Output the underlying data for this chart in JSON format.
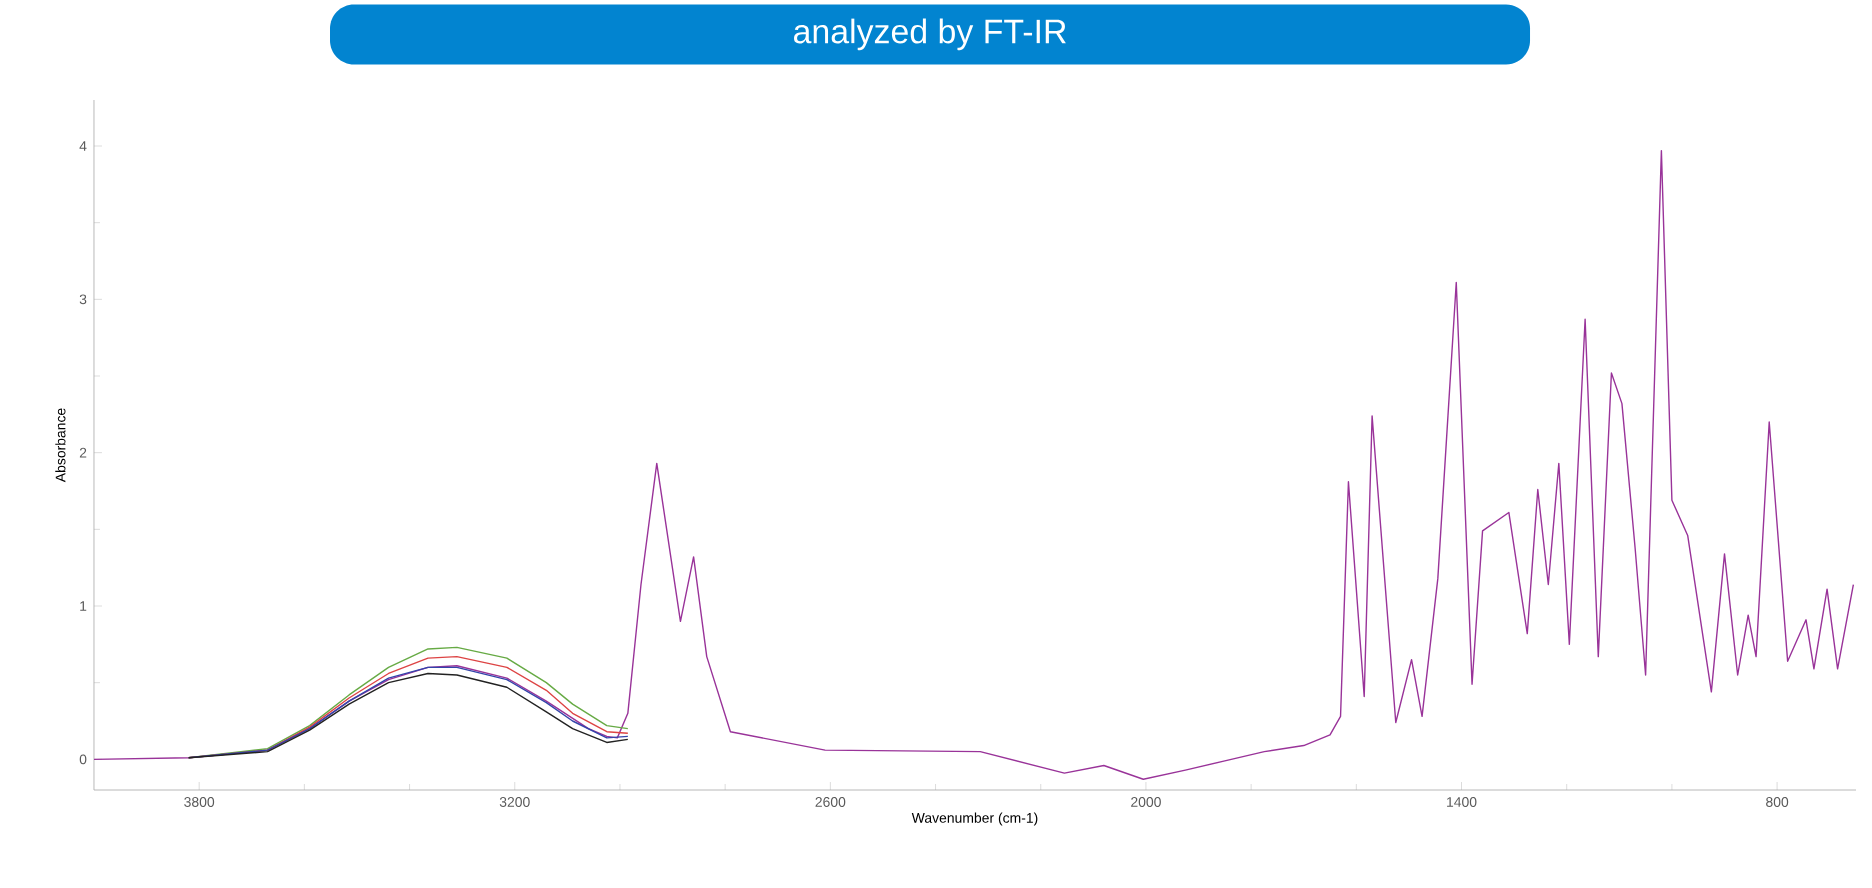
{
  "chart_data": {
    "type": "line",
    "title": "analyzed by FT-IR",
    "xlabel": "Wavenumber (cm-1)",
    "ylabel": "Absorbance",
    "xlim": [
      4000,
      650
    ],
    "ylim": [
      -0.2,
      4.3
    ],
    "xticks": [
      3800,
      {
        "value": 3600,
        "label": null
      },
      {
        "value": 3400,
        "label": null
      },
      3200,
      {
        "value": 3000,
        "label": null
      },
      {
        "value": 2800,
        "label": null
      },
      2600,
      {
        "value": 2400,
        "label": null
      },
      {
        "value": 2200,
        "label": null
      },
      2000,
      {
        "value": 1800,
        "label": null
      },
      {
        "value": 1600,
        "label": null
      },
      1400,
      {
        "value": 1200,
        "label": null
      },
      {
        "value": 1000,
        "label": null
      },
      800
    ],
    "yticks": [
      0,
      {
        "value": 0.5,
        "label": null
      },
      1,
      {
        "value": 1.5,
        "label": null
      },
      2,
      {
        "value": 2.5,
        "label": null
      },
      3,
      {
        "value": 3.5,
        "label": null
      },
      4
    ],
    "grid": false,
    "marker": "none",
    "line_style": "solid",
    "series": [
      {
        "color": "#993399",
        "x": [
          4000,
          3820,
          3670,
          3590,
          3515,
          3440,
          3365,
          3310,
          3215,
          3140,
          3060,
          3025,
          3005,
          2985,
          2960,
          2930,
          2885,
          2860,
          2835,
          2790,
          2610,
          2315,
          2155,
          2080,
          2005,
          1925,
          1850,
          1775,
          1700,
          1650,
          1630,
          1615,
          1585,
          1570,
          1525,
          1495,
          1475,
          1445,
          1410,
          1380,
          1360,
          1310,
          1275,
          1255,
          1235,
          1215,
          1195,
          1165,
          1140,
          1115,
          1095,
          1070,
          1050,
          1020,
          1000,
          970,
          925,
          900,
          875,
          855,
          840,
          815,
          780,
          745,
          730,
          705,
          685,
          655
        ],
        "values": [
          0.0,
          0.01,
          0.06,
          0.2,
          0.38,
          0.52,
          0.6,
          0.61,
          0.53,
          0.38,
          0.2,
          0.15,
          0.14,
          0.3,
          1.14,
          1.93,
          0.9,
          1.32,
          0.67,
          0.18,
          0.06,
          0.05,
          -0.09,
          -0.04,
          -0.13,
          -0.07,
          -0.01,
          0.05,
          0.09,
          0.16,
          0.28,
          1.81,
          0.41,
          2.24,
          0.24,
          0.65,
          0.28,
          1.18,
          3.11,
          0.49,
          1.49,
          1.61,
          0.82,
          1.76,
          1.14,
          1.93,
          0.75,
          2.87,
          0.67,
          2.52,
          2.32,
          1.38,
          0.55,
          3.97,
          1.69,
          1.46,
          0.44,
          1.34,
          0.55,
          0.94,
          0.67,
          2.2,
          0.64,
          0.91,
          0.59,
          1.11,
          0.59,
          1.14
        ]
      },
      {
        "color": "#66aa44",
        "x": [
          3820,
          3670,
          3590,
          3515,
          3440,
          3365,
          3310,
          3215,
          3140,
          3090,
          3025,
          2985
        ],
        "values": [
          0.01,
          0.07,
          0.22,
          0.42,
          0.6,
          0.72,
          0.73,
          0.66,
          0.5,
          0.36,
          0.22,
          0.2
        ]
      },
      {
        "color": "#dd4444",
        "x": [
          3820,
          3670,
          3590,
          3515,
          3440,
          3365,
          3310,
          3215,
          3140,
          3090,
          3025,
          2985
        ],
        "values": [
          0.01,
          0.06,
          0.21,
          0.4,
          0.56,
          0.66,
          0.67,
          0.6,
          0.45,
          0.3,
          0.18,
          0.17
        ]
      },
      {
        "color": "#3344aa",
        "x": [
          3820,
          3670,
          3590,
          3515,
          3440,
          3365,
          3310,
          3215,
          3140,
          3090,
          3025,
          2985
        ],
        "values": [
          0.01,
          0.06,
          0.2,
          0.38,
          0.53,
          0.6,
          0.6,
          0.52,
          0.37,
          0.25,
          0.14,
          0.15
        ]
      },
      {
        "color": "#222222",
        "x": [
          3820,
          3670,
          3590,
          3515,
          3440,
          3365,
          3310,
          3215,
          3140,
          3090,
          3025,
          2985
        ],
        "values": [
          0.01,
          0.05,
          0.19,
          0.36,
          0.5,
          0.56,
          0.55,
          0.47,
          0.31,
          0.2,
          0.11,
          0.13
        ]
      }
    ]
  }
}
